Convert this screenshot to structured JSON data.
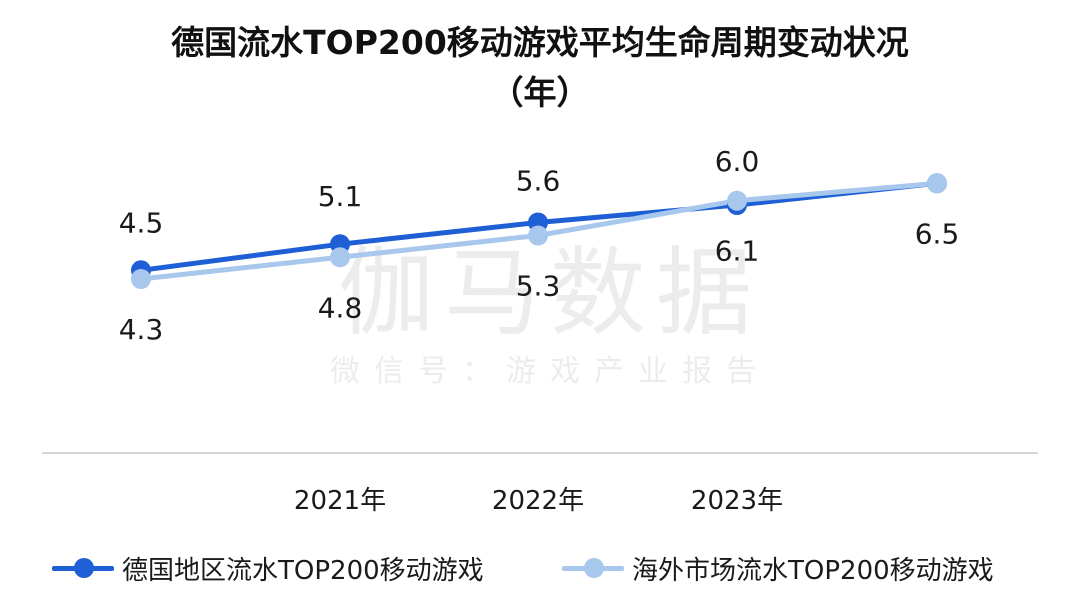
{
  "title_line1": "德国流水TOP200移动游戏平均生命周期变动状况",
  "title_line2": "（年）",
  "watermark": {
    "main": "伽马数据",
    "sub": "微信号：游戏产业报告"
  },
  "colors": {
    "germany": "#1f5fd6",
    "overseas": "#a7c8ec",
    "axis": "#cccccc"
  },
  "chart_data": {
    "type": "line",
    "categories": [
      "",
      "2021年",
      "2022年",
      "2023年",
      ""
    ],
    "series": [
      {
        "name": "德国地区流水TOP200移动游戏",
        "values": [
          4.5,
          5.1,
          5.6,
          6.0,
          6.5
        ]
      },
      {
        "name": "海外市场流水TOP200移动游戏",
        "values": [
          4.3,
          4.8,
          5.3,
          6.1,
          6.5
        ]
      }
    ],
    "data_labels": {
      "germany": [
        "4.5",
        "5.1",
        "5.6",
        "6.0",
        ""
      ],
      "overseas": [
        "4.3",
        "4.8",
        "5.3",
        "6.1",
        "6.5"
      ]
    },
    "grid": false,
    "legend_position": "bottom"
  }
}
